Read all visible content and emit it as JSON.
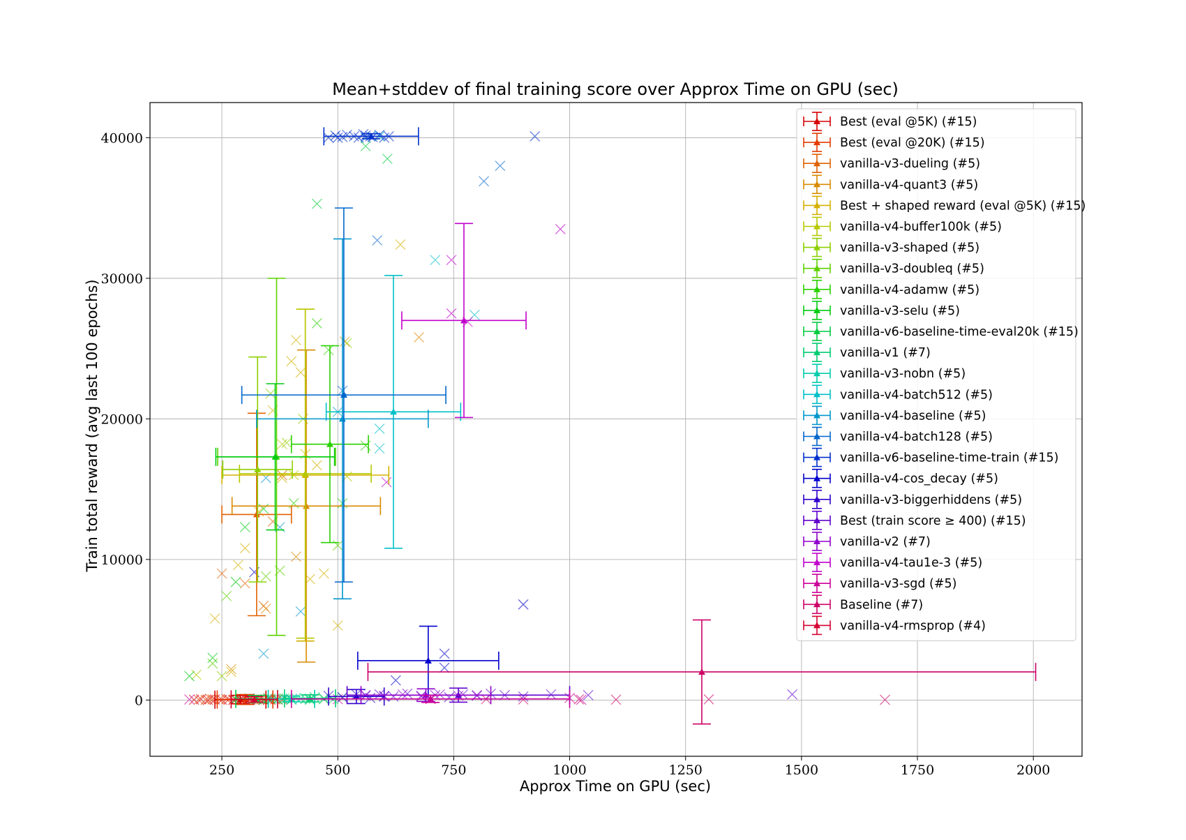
{
  "chart_data": {
    "type": "scatter",
    "title": "Mean+stddev of final training score over Approx Time on GPU (sec)",
    "xlabel": "Approx Time on GPU (sec)",
    "ylabel": "Train total reward (avg last 100 epochs)",
    "xlim": [
      95,
      2105
    ],
    "ylim": [
      -4000,
      42500
    ],
    "xticks": [
      250,
      500,
      750,
      1000,
      1250,
      1500,
      1750,
      2000
    ],
    "yticks": [
      0,
      10000,
      20000,
      30000,
      40000
    ],
    "grid": true,
    "legend_position": "upper-right",
    "series": [
      {
        "name": "Best (eval @5K) (#15)",
        "color": "#d60000",
        "mean": [
          290,
          30
        ],
        "xerr": 55,
        "yerr": 300,
        "points": [
          [
            190,
            20
          ],
          [
            205,
            60
          ],
          [
            220,
            10
          ],
          [
            235,
            40
          ],
          [
            250,
            15
          ],
          [
            265,
            50
          ],
          [
            280,
            25
          ],
          [
            295,
            40
          ],
          [
            310,
            20
          ],
          [
            325,
            60
          ],
          [
            340,
            30
          ],
          [
            355,
            15
          ],
          [
            370,
            40
          ],
          [
            300,
            80
          ],
          [
            275,
            5
          ]
        ]
      },
      {
        "name": "Best (eval @20K) (#15)",
        "color": "#e43a00",
        "mean": [
          300,
          40
        ],
        "xerr": 60,
        "yerr": 350,
        "points": [
          [
            200,
            30
          ],
          [
            215,
            10
          ],
          [
            230,
            50
          ],
          [
            245,
            20
          ],
          [
            260,
            70
          ],
          [
            275,
            30
          ],
          [
            290,
            10
          ],
          [
            305,
            60
          ],
          [
            320,
            25
          ],
          [
            335,
            40
          ],
          [
            350,
            15
          ],
          [
            365,
            50
          ],
          [
            380,
            30
          ],
          [
            225,
            80
          ],
          [
            340,
            5
          ]
        ]
      },
      {
        "name": "vanilla-v3-dueling (#5)",
        "color": "#e06000",
        "mean": [
          325,
          13200
        ],
        "xerr": 75,
        "yerr": 7200,
        "points": [
          [
            340,
            6700
          ],
          [
            360,
            12700
          ],
          [
            300,
            8300
          ],
          [
            250,
            9000
          ],
          [
            380,
            16000
          ]
        ]
      },
      {
        "name": "vanilla-v4-quant3 (#5)",
        "color": "#d88a00",
        "mean": [
          432,
          13800
        ],
        "xerr": 160,
        "yerr": 11100,
        "points": [
          [
            270,
            2200
          ],
          [
            345,
            6500
          ],
          [
            410,
            10200
          ],
          [
            675,
            25800
          ],
          [
            515,
            25500
          ]
        ]
      },
      {
        "name": "Best + shaped reward (eval @5K) (#15)",
        "color": "#d4b000",
        "mean": [
          430,
          16000
        ],
        "xerr": 180,
        "yerr": 11800,
        "points": [
          [
            235,
            5800
          ],
          [
            270,
            2000
          ],
          [
            285,
            9600
          ],
          [
            300,
            10800
          ],
          [
            330,
            13400
          ],
          [
            360,
            20600
          ],
          [
            380,
            15800
          ],
          [
            400,
            24100
          ],
          [
            410,
            25600
          ],
          [
            420,
            23300
          ],
          [
            440,
            8600
          ],
          [
            455,
            16700
          ],
          [
            470,
            9000
          ],
          [
            500,
            5300
          ],
          [
            635,
            32400
          ]
        ]
      },
      {
        "name": "vanilla-v4-buffer100k (#5)",
        "color": "#b8c800",
        "mean": [
          430,
          16100
        ],
        "xerr": 142,
        "yerr": 11700,
        "points": [
          [
            195,
            1800
          ],
          [
            380,
            18200
          ],
          [
            405,
            16000
          ],
          [
            430,
            17500
          ],
          [
            520,
            15900
          ]
        ]
      },
      {
        "name": "vanilla-v3-shaped (#5)",
        "color": "#8ed000",
        "mean": [
          327,
          16400
        ],
        "xerr": 75,
        "yerr": 8000,
        "points": [
          [
            250,
            1700
          ],
          [
            355,
            21800
          ],
          [
            390,
            18300
          ],
          [
            425,
            20000
          ],
          [
            520,
            25400
          ]
        ]
      },
      {
        "name": "vanilla-v3-doubleq (#5)",
        "color": "#5ed000",
        "mean": [
          368,
          17300
        ],
        "xerr": 127,
        "yerr": 12700,
        "points": [
          [
            230,
            2600
          ],
          [
            260,
            7400
          ],
          [
            345,
            8800
          ],
          [
            375,
            9200
          ],
          [
            500,
            11000
          ]
        ]
      },
      {
        "name": "vanilla-v4-adamw (#5)",
        "color": "#2ad000",
        "mean": [
          483,
          18200
        ],
        "xerr": 83,
        "yerr": 7000,
        "points": [
          [
            405,
            14000
          ],
          [
            455,
            26800
          ],
          [
            480,
            24900
          ],
          [
            510,
            14000
          ],
          [
            560,
            18100
          ]
        ]
      },
      {
        "name": "vanilla-v3-selu (#5)",
        "color": "#00cc10",
        "mean": [
          365,
          17300
        ],
        "xerr": 128,
        "yerr": 5200,
        "points": [
          [
            180,
            1700
          ],
          [
            230,
            3000
          ],
          [
            280,
            8400
          ],
          [
            300,
            12300
          ],
          [
            340,
            13600
          ]
        ]
      },
      {
        "name": "vanilla-v6-baseline-time-eval20k (#15)",
        "color": "#00cc40",
        "mean": [
          325,
          80
        ],
        "xerr": 45,
        "yerr": 250,
        "points": [
          [
            280,
            80
          ],
          [
            295,
            40
          ],
          [
            310,
            120
          ],
          [
            325,
            60
          ],
          [
            340,
            20
          ],
          [
            355,
            90
          ],
          [
            370,
            50
          ],
          [
            385,
            110
          ],
          [
            400,
            30
          ],
          [
            455,
            35300
          ],
          [
            560,
            39400
          ],
          [
            607,
            38500
          ],
          [
            440,
            20
          ],
          [
            470,
            60
          ],
          [
            350,
            150
          ]
        ]
      },
      {
        "name": "vanilla-v1 (#7)",
        "color": "#00cc70",
        "mean": [
          440,
          120
        ],
        "xerr": 55,
        "yerr": 250,
        "points": [
          [
            390,
            100
          ],
          [
            410,
            150
          ],
          [
            430,
            80
          ],
          [
            450,
            200
          ],
          [
            470,
            120
          ],
          [
            490,
            60
          ],
          [
            510,
            180
          ]
        ]
      },
      {
        "name": "vanilla-v3-nobn (#5)",
        "color": "#00ccaa",
        "mean": [
          400,
          80
        ],
        "xerr": 50,
        "yerr": 200,
        "points": [
          [
            360,
            60
          ],
          [
            380,
            120
          ],
          [
            400,
            40
          ],
          [
            420,
            100
          ],
          [
            440,
            70
          ]
        ]
      },
      {
        "name": "vanilla-v4-batch512 (#5)",
        "color": "#00c0c8",
        "mean": [
          620,
          20500
        ],
        "xerr": 145,
        "yerr": 9700,
        "points": [
          [
            590,
            17900
          ],
          [
            590,
            19300
          ],
          [
            710,
            31300
          ],
          [
            795,
            27400
          ],
          [
            590,
            40100
          ]
        ]
      },
      {
        "name": "vanilla-v4-baseline (#5)",
        "color": "#0096cc",
        "mean": [
          510,
          20000
        ],
        "xerr": 185,
        "yerr": 12800,
        "points": [
          [
            340,
            3300
          ],
          [
            345,
            15800
          ],
          [
            375,
            12300
          ],
          [
            420,
            6300
          ],
          [
            500,
            20500
          ]
        ]
      },
      {
        "name": "vanilla-v4-batch128 (#5)",
        "color": "#0066cc",
        "mean": [
          513,
          21700
        ],
        "xerr": 220,
        "yerr": 13300,
        "points": [
          [
            510,
            22000
          ],
          [
            585,
            32700
          ],
          [
            815,
            36900
          ],
          [
            850,
            38000
          ],
          [
            560,
            40000
          ]
        ]
      },
      {
        "name": "vanilla-v6-baseline-time-train (#15)",
        "color": "#0030cc",
        "mean": [
          572,
          40100
        ],
        "xerr": 102,
        "yerr": 180,
        "points": [
          [
            480,
            40000
          ],
          [
            495,
            40150
          ],
          [
            510,
            40050
          ],
          [
            520,
            40200
          ],
          [
            535,
            40100
          ],
          [
            545,
            40000
          ],
          [
            560,
            40150
          ],
          [
            575,
            40050
          ],
          [
            590,
            40200
          ],
          [
            600,
            40000
          ],
          [
            610,
            40100
          ],
          [
            500,
            40000
          ],
          [
            555,
            40250
          ],
          [
            925,
            40100
          ],
          [
            570,
            40100
          ]
        ]
      },
      {
        "name": "vanilla-v4-cos_decay (#5)",
        "color": "#0000cc",
        "mean": [
          695,
          2800
        ],
        "xerr": 152,
        "yerr": 2450,
        "points": [
          [
            320,
            9100
          ],
          [
            625,
            1400
          ],
          [
            730,
            3300
          ],
          [
            730,
            2300
          ],
          [
            900,
            6800
          ]
        ]
      },
      {
        "name": "vanilla-v3-biggerhiddens (#5)",
        "color": "#3000cc",
        "mean": [
          540,
          250
        ],
        "xerr": 60,
        "yerr": 500,
        "points": [
          [
            480,
            300
          ],
          [
            510,
            200
          ],
          [
            540,
            400
          ],
          [
            570,
            150
          ],
          [
            600,
            250
          ]
        ]
      },
      {
        "name": "Best (train score ≥ 400) (#15)",
        "color": "#6000cc",
        "mean": [
          760,
          350
        ],
        "xerr": 240,
        "yerr": 500,
        "points": [
          [
            560,
            300
          ],
          [
            590,
            400
          ],
          [
            620,
            250
          ],
          [
            650,
            450
          ],
          [
            680,
            300
          ],
          [
            710,
            350
          ],
          [
            740,
            200
          ],
          [
            770,
            400
          ],
          [
            800,
            300
          ],
          [
            830,
            450
          ],
          [
            860,
            350
          ],
          [
            900,
            250
          ],
          [
            960,
            400
          ],
          [
            1040,
            350
          ],
          [
            1480,
            400
          ]
        ]
      },
      {
        "name": "vanilla-v2 (#7)",
        "color": "#9000cc",
        "mean": [
          690,
          350
        ],
        "xerr": 140,
        "yerr": 450,
        "points": [
          [
            560,
            350
          ],
          [
            600,
            300
          ],
          [
            640,
            400
          ],
          [
            680,
            250
          ],
          [
            720,
            400
          ],
          [
            760,
            300
          ],
          [
            800,
            350
          ]
        ]
      },
      {
        "name": "vanilla-v4-tau1e-3 (#5)",
        "color": "#c000cc",
        "mean": [
          772,
          27000
        ],
        "xerr": 134,
        "yerr": 6900,
        "points": [
          [
            605,
            15500
          ],
          [
            745,
            31300
          ],
          [
            745,
            27500
          ],
          [
            780,
            26900
          ],
          [
            980,
            33500
          ]
        ]
      },
      {
        "name": "vanilla-v3-sgd (#5)",
        "color": "#cc0099",
        "mean": [
          700,
          80
        ],
        "xerr": 300,
        "yerr": 250,
        "points": [
          [
            180,
            40
          ],
          [
            500,
            60
          ],
          [
            700,
            100
          ],
          [
            1025,
            20
          ],
          [
            1000,
            150
          ]
        ]
      },
      {
        "name": "Baseline (#7)",
        "color": "#cc0066",
        "mean": [
          1285,
          2000
        ],
        "xerr": 720,
        "yerr": 3700,
        "points": [
          [
            820,
            60
          ],
          [
            1020,
            50
          ],
          [
            1680,
            20
          ],
          [
            700,
            80
          ],
          [
            900,
            40
          ],
          [
            1100,
            30
          ],
          [
            1300,
            50
          ]
        ]
      },
      {
        "name": "vanilla-v4-rmsprop (#4)",
        "color": "#d60030",
        "mean": [
          320,
          50
        ],
        "xerr": 50,
        "yerr": 200,
        "points": [
          [
            290,
            40
          ],
          [
            310,
            70
          ],
          [
            330,
            30
          ],
          [
            350,
            60
          ]
        ]
      }
    ]
  }
}
